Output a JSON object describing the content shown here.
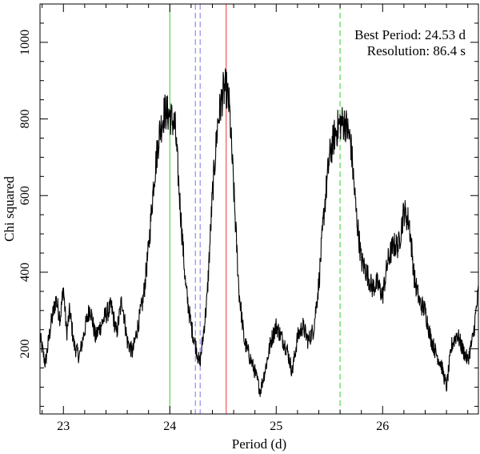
{
  "chart_data": {
    "type": "line",
    "title": "",
    "xlabel": "Period (d)",
    "ylabel": "Chi squared",
    "xlim": [
      22.78,
      26.9
    ],
    "ylim": [
      30,
      1100
    ],
    "x_ticks": [
      23,
      24,
      25,
      26
    ],
    "x_tick_labels": [
      "23",
      "24",
      "25",
      "26"
    ],
    "y_ticks": [
      200,
      400,
      600,
      800,
      1000
    ],
    "y_tick_labels": [
      "200",
      "400",
      "600",
      "800",
      "1000"
    ],
    "grid": false,
    "legend": "none",
    "annotations": {
      "best_period": "Best Period:  24.53 d",
      "resolution": "Resolution: 86.4 s"
    },
    "vertical_lines": [
      {
        "x": 24.0,
        "color": "#33cc33",
        "style": "solid"
      },
      {
        "x": 24.24,
        "color": "#7777ee",
        "style": "dashed"
      },
      {
        "x": 24.285,
        "color": "#7777ee",
        "style": "dashed"
      },
      {
        "x": 24.53,
        "color": "#ee3333",
        "style": "solid"
      },
      {
        "x": 25.6,
        "color": "#33cc33",
        "style": "dashed"
      }
    ],
    "series": [
      {
        "color": "#000000",
        "x": [
          22.78,
          22.83,
          22.88,
          22.93,
          22.97,
          23.0,
          23.03,
          23.06,
          23.1,
          23.15,
          23.2,
          23.25,
          23.3,
          23.35,
          23.4,
          23.45,
          23.5,
          23.55,
          23.6,
          23.65,
          23.7,
          23.75,
          23.8,
          23.85,
          23.9,
          23.95,
          24.0,
          24.05,
          24.1,
          24.15,
          24.2,
          24.25,
          24.28,
          24.3,
          24.35,
          24.4,
          24.45,
          24.5,
          24.53,
          24.56,
          24.6,
          24.65,
          24.7,
          24.75,
          24.8,
          24.85,
          24.9,
          24.95,
          25.0,
          25.05,
          25.1,
          25.15,
          25.2,
          25.25,
          25.3,
          25.35,
          25.4,
          25.45,
          25.5,
          25.55,
          25.6,
          25.65,
          25.7,
          25.75,
          25.8,
          25.85,
          25.9,
          25.95,
          26.0,
          26.05,
          26.1,
          26.15,
          26.2,
          26.25,
          26.3,
          26.35,
          26.4,
          26.45,
          26.5,
          26.55,
          26.6,
          26.65,
          26.7,
          26.75,
          26.8,
          26.85,
          26.9
        ],
        "y": [
          230,
          160,
          260,
          330,
          280,
          360,
          240,
          300,
          210,
          180,
          250,
          310,
          230,
          260,
          290,
          310,
          240,
          330,
          220,
          190,
          260,
          330,
          460,
          640,
          760,
          820,
          810,
          780,
          560,
          360,
          260,
          200,
          160,
          200,
          330,
          600,
          790,
          870,
          880,
          830,
          620,
          350,
          220,
          180,
          140,
          90,
          150,
          220,
          260,
          230,
          200,
          140,
          230,
          260,
          220,
          250,
          370,
          560,
          700,
          760,
          790,
          790,
          740,
          560,
          430,
          400,
          360,
          370,
          340,
          430,
          470,
          470,
          560,
          530,
          380,
          320,
          300,
          230,
          190,
          160,
          100,
          210,
          240,
          200,
          170,
          230,
          350
        ]
      }
    ]
  }
}
